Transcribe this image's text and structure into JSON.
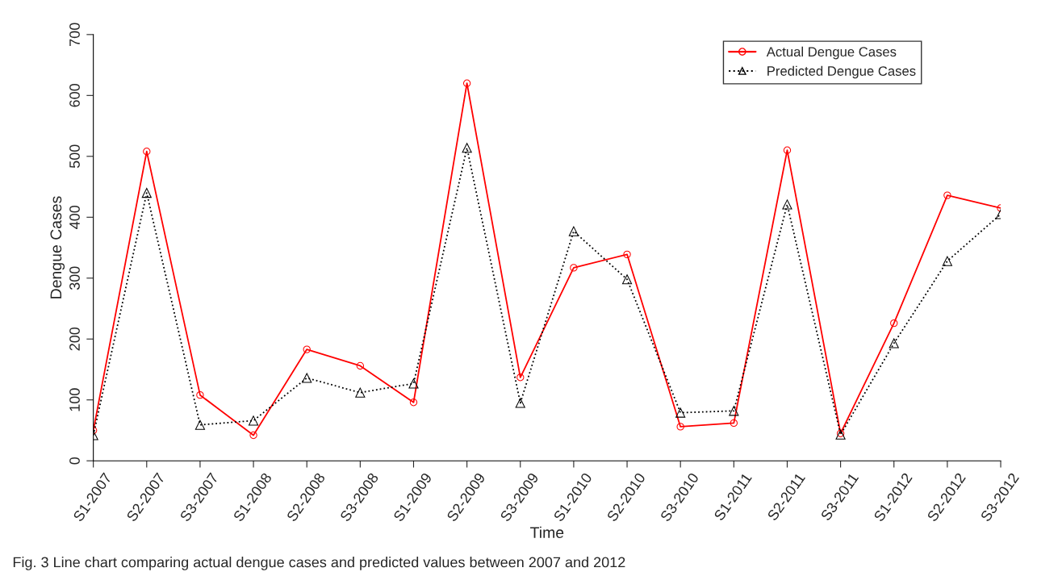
{
  "chart_data": {
    "type": "line",
    "xlabel": "Time",
    "ylabel": "Dengue Cases",
    "categories": [
      "S1-2007",
      "S2-2007",
      "S3-2007",
      "S1-2008",
      "S2-2008",
      "S3-2008",
      "S1-2009",
      "S2-2009",
      "S3-2009",
      "S1-2010",
      "S2-2010",
      "S3-2010",
      "S1-2011",
      "S2-2011",
      "S3-2011",
      "S1-2012",
      "S2-2012",
      "S3-2012"
    ],
    "series": [
      {
        "name": "Actual Dengue Cases",
        "color": "#ff0000",
        "marker": "circle",
        "line_style": "solid",
        "values": [
          50,
          508,
          108,
          42,
          183,
          156,
          96,
          620,
          137,
          317,
          339,
          56,
          62,
          510,
          45,
          226,
          436,
          415
        ]
      },
      {
        "name": "Predicted Dengue Cases",
        "color": "#000000",
        "marker": "triangle",
        "line_style": "dotted",
        "values": [
          42,
          440,
          59,
          66,
          136,
          112,
          127,
          514,
          95,
          377,
          298,
          79,
          82,
          421,
          43,
          193,
          328,
          405
        ]
      }
    ],
    "ylim": [
      0,
      700
    ],
    "yticks": [
      0,
      100,
      200,
      300,
      400,
      500,
      600,
      700
    ],
    "grid": false,
    "legend": "top right",
    "annotations": [
      "Fig. 3 Line chart comparing actual dengue cases and predicted values between 2007 and 2012"
    ]
  }
}
